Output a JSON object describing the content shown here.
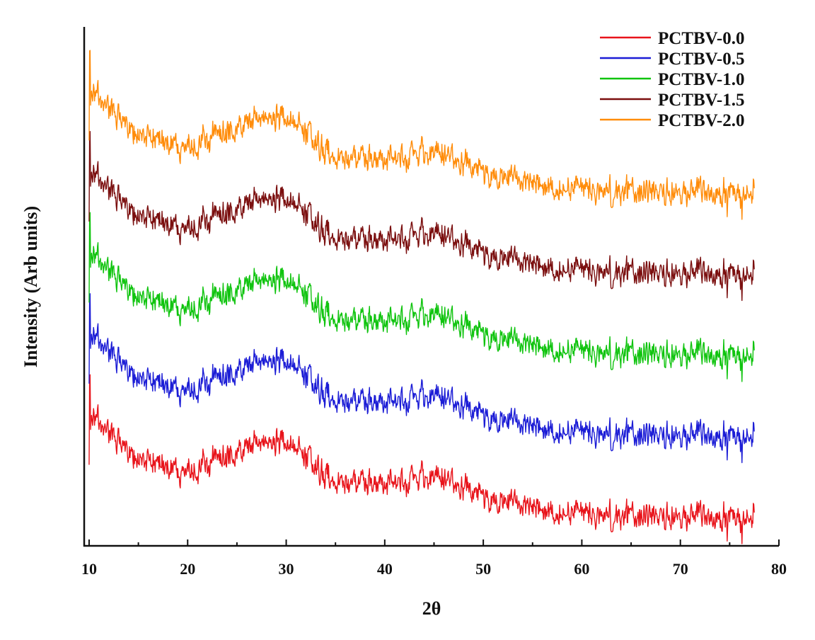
{
  "chart_data": {
    "type": "line",
    "title": "",
    "xlabel": "2θ",
    "ylabel": "Intensity (Arb units)",
    "xlim": [
      9.5,
      80
    ],
    "ylim": [
      0,
      6.4
    ],
    "x_ticks": [
      "10",
      "20",
      "30",
      "40",
      "50",
      "60",
      "70",
      "80"
    ],
    "x_tick_values": [
      10,
      20,
      30,
      40,
      50,
      60,
      70,
      80
    ],
    "y_ticks_shown": false,
    "grid": false,
    "legend_position": "top-right",
    "x_range_data": [
      10,
      77.5
    ],
    "envelope_note": "Relative intensity profile (arbitrary units); identical shape for every series, vertically offset.",
    "profile": {
      "x": [
        10.0,
        10.5,
        11.5,
        13.0,
        15.0,
        17.0,
        19.0,
        20.5,
        22.0,
        24.0,
        26.0,
        27.0,
        28.5,
        29.5,
        30.5,
        32.0,
        33.5,
        35.0,
        37.0,
        39.0,
        41.0,
        43.0,
        45.0,
        47.0,
        48.5,
        50.0,
        52.0,
        54.0,
        56.0,
        58.0,
        60.0,
        62.0,
        64.0,
        66.0,
        68.0,
        70.0,
        72.0,
        74.0,
        76.0,
        77.5
      ],
      "y": [
        1.55,
        1.6,
        1.45,
        1.25,
        1.1,
        1.02,
        0.95,
        0.93,
        0.98,
        1.1,
        1.22,
        1.3,
        1.28,
        1.22,
        1.25,
        1.08,
        0.92,
        0.82,
        0.78,
        0.76,
        0.8,
        0.86,
        0.85,
        0.78,
        0.72,
        0.62,
        0.55,
        0.5,
        0.46,
        0.43,
        0.42,
        0.4,
        0.38,
        0.37,
        0.36,
        0.35,
        0.34,
        0.33,
        0.32,
        0.32
      ]
    },
    "series": [
      {
        "name": "PCTBV-0.0",
        "color": "#e8141b",
        "offset": 0.0
      },
      {
        "name": "PCTBV-0.5",
        "color": "#1c1dd6",
        "offset": 1.0
      },
      {
        "name": "PCTBV-1.0",
        "color": "#10c40f",
        "offset": 2.0
      },
      {
        "name": "PCTBV-1.5",
        "color": "#7b0f0f",
        "offset": 3.0
      },
      {
        "name": "PCTBV-2.0",
        "color": "#ff8c0a",
        "offset": 4.0
      }
    ]
  }
}
